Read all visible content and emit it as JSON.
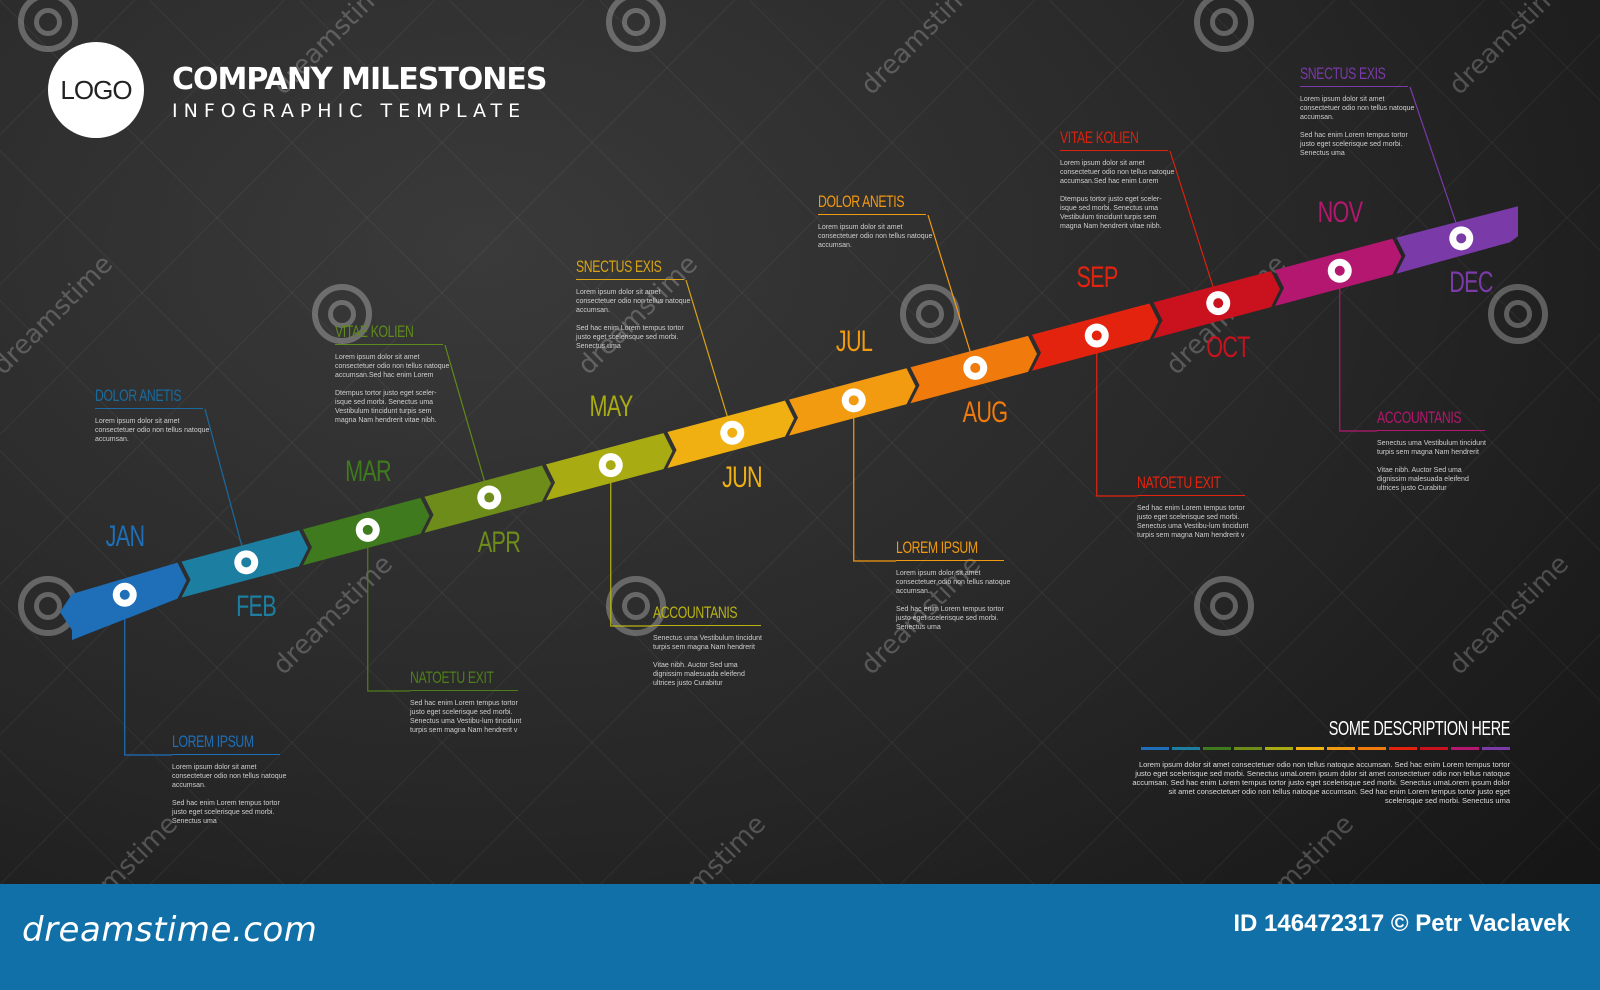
{
  "header": {
    "logo": "LOGO",
    "title": "COMPANY MILESTONES",
    "subtitle": "INFOGRAPHIC TEMPLATE"
  },
  "timeline": {
    "months": [
      {
        "label": "JAN",
        "color": "#1e6fb8"
      },
      {
        "label": "FEB",
        "color": "#1c7ea0"
      },
      {
        "label": "MAR",
        "color": "#3f7a1e"
      },
      {
        "label": "APR",
        "color": "#6e8c19"
      },
      {
        "label": "MAY",
        "color": "#a9ab13"
      },
      {
        "label": "JUN",
        "color": "#f0b012"
      },
      {
        "label": "JUL",
        "color": "#f29a10"
      },
      {
        "label": "AUG",
        "color": "#f07a0c"
      },
      {
        "label": "SEP",
        "color": "#e4230f"
      },
      {
        "label": "OCT",
        "color": "#c9121e"
      },
      {
        "label": "NOV",
        "color": "#b3176f"
      },
      {
        "label": "DEC",
        "color": "#7a3aa8"
      }
    ]
  },
  "callouts": [
    {
      "title": "DOLOR ANETIS",
      "color": "#1a6a9e",
      "p1": "Lorem ipsum dolor sit amet consectetuer odio non tellus natoque accumsan.",
      "p2": ""
    },
    {
      "title": "LOREM IPSUM",
      "color": "#1e6fb8",
      "p1": "Lorem ipsum dolor sit amet consectetuer odio non tellus natoque accumsan.",
      "p2": "Sed hac enim Lorem tempus tortor justo eget scelerisque sed morbi. Senectus uma"
    },
    {
      "title": "VITAE KOLIEN",
      "color": "#5e8a1a",
      "p1": "Lorem ipsum dolor sit amet consectetuer odio non tellus natoque accumsan.Sed hac enim Lorem",
      "p2": "Dtempus tortor justo eget sceler-isque sed morbi. Senectus uma Vestibulum tincidunt turpis sem magna Nam hendrerit vitae nibh."
    },
    {
      "title": "NATOETU EXIT",
      "color": "#4f7e1b",
      "p1": "Sed hac enim Lorem tempus tortor justo eget scelerisque sed morbi. Senectus uma Vestibu-lum tincidunt turpis sem magna Nam hendrerit v",
      "p2": ""
    },
    {
      "title": "SNECTUS EXIS",
      "color": "#d9a514",
      "p1": "Lorem ipsum dolor sit amet consectetuer odio non tellus natoque accumsan.",
      "p2": "Sed hac enim Lorem tempus tortor justo eget scelerisque sed morbi. Senectus uma"
    },
    {
      "title": "ACCOUNTANIS",
      "color": "#b9b313",
      "p1": "Senectus uma Vestibulum tincidunt turpis sem magna Nam hendrerit",
      "p2": "Vitae nibh. Auctor Sed uma dignissim malesuada eleifend ultrices justo Curabitur"
    },
    {
      "title": "DOLOR ANETIS",
      "color": "#f29a10",
      "p1": "Lorem ipsum dolor sit amet consectetuer odio non tellus natoque accumsan.",
      "p2": ""
    },
    {
      "title": "LOREM IPSUM",
      "color": "#f29a10",
      "p1": "Lorem ipsum dolor sit amet consectetuer odio non tellus natoque accumsan.",
      "p2": "Sed hac enim Lorem tempus tortor justo eget scelerisque sed morbi. Senectus uma"
    },
    {
      "title": "VITAE KOLIEN",
      "color": "#d9230f",
      "p1": "Lorem ipsum dolor sit amet consectetuer odio non tellus natoque accumsan.Sed hac enim Lorem",
      "p2": "Dtempus tortor justo eget sceler-isque sed morbi. Senectus uma Vestibulum tincidunt turpis sem magna Nam hendrerit vitae nibh."
    },
    {
      "title": "NATOETU EXIT",
      "color": "#e4230f",
      "p1": "Sed hac enim Lorem tempus tortor justo eget scelerisque sed morbi. Senectus uma Vestibu-lum tincidunt turpis sem magna Nam hendrerit v",
      "p2": ""
    },
    {
      "title": "SNECTUS EXIS",
      "color": "#7a3aa8",
      "p1": "Lorem ipsum dolor sit amet consectetuer odio non tellus natoque accumsan.",
      "p2": "Sed hac enim Lorem tempus tortor justo eget scelerisque sed morbi. Senectus uma"
    },
    {
      "title": "ACCOUNTANIS",
      "color": "#b3176f",
      "p1": "Senectus uma Vestibulum tincidunt turpis sem magna Nam hendrerit",
      "p2": "Vitae nibh. Auctor Sed uma dignissim malesuada eleifend ultrices justo Curabitur"
    }
  ],
  "description": {
    "title": "SOME DESCRIPTION HERE",
    "text": "Lorem ipsum dolor sit amet consectetuer odio non tellus natoque accumsan. Sed hac enim Lorem tempus tortor justo eget scelerisque sed morbi. Senectus umaLorem ipsum dolor sit amet consectetuer odio non tellus natoque accumsan. Sed hac enim Lorem tempus tortor justo eget scelerisque sed morbi. Senectus umaLorem ipsum dolor sit amet consectetuer odio non tellus natoque accumsan. Sed hac enim Lorem tempus tortor justo eget scelerisque sed morbi. Senectus uma"
  },
  "watermark": {
    "text": "dreamstime"
  },
  "footer": {
    "site": "dreamstime.com",
    "id_credit": "ID 146472317 © Petr Vaclavek"
  }
}
